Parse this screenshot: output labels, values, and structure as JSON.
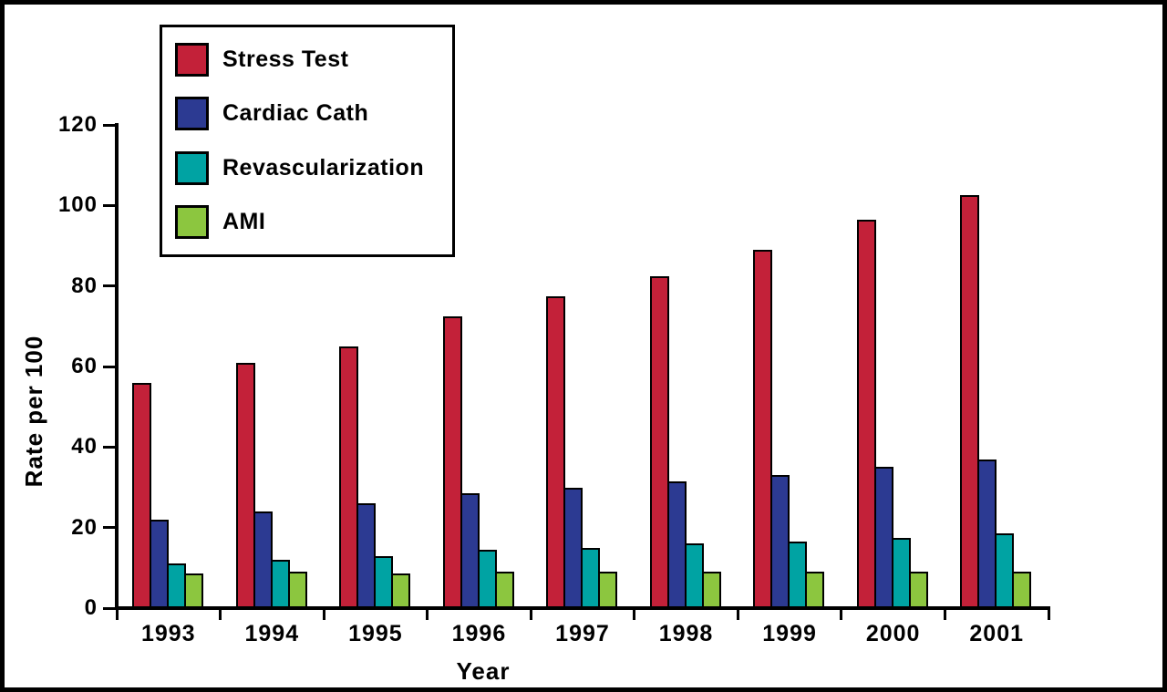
{
  "chart_data": {
    "type": "bar",
    "title": "",
    "xlabel": "Year",
    "ylabel": "Rate per 100",
    "ylim": [
      0,
      120
    ],
    "yticks": [
      0,
      20,
      40,
      60,
      80,
      100,
      120
    ],
    "grid": false,
    "legend_position": "top-left",
    "categories": [
      "1993",
      "1994",
      "1995",
      "1996",
      "1997",
      "1998",
      "1999",
      "2000",
      "2001"
    ],
    "series": [
      {
        "name": "Stress Test",
        "color": "#c32139",
        "values": [
          56,
          61,
          65,
          72.5,
          77.5,
          82.5,
          89,
          96.5,
          102.5
        ]
      },
      {
        "name": "Cardiac Cath",
        "color": "#2c3a92",
        "values": [
          22,
          24,
          26,
          28.5,
          30,
          31.5,
          33,
          35,
          37
        ]
      },
      {
        "name": "Revascularization",
        "color": "#00a3a3",
        "values": [
          11,
          12,
          13,
          14.5,
          15,
          16,
          16.5,
          17.5,
          18.5
        ]
      },
      {
        "name": "AMI",
        "color": "#8cc63f",
        "values": [
          8.5,
          9,
          8.5,
          9,
          9,
          9,
          9,
          9,
          9
        ]
      }
    ]
  }
}
